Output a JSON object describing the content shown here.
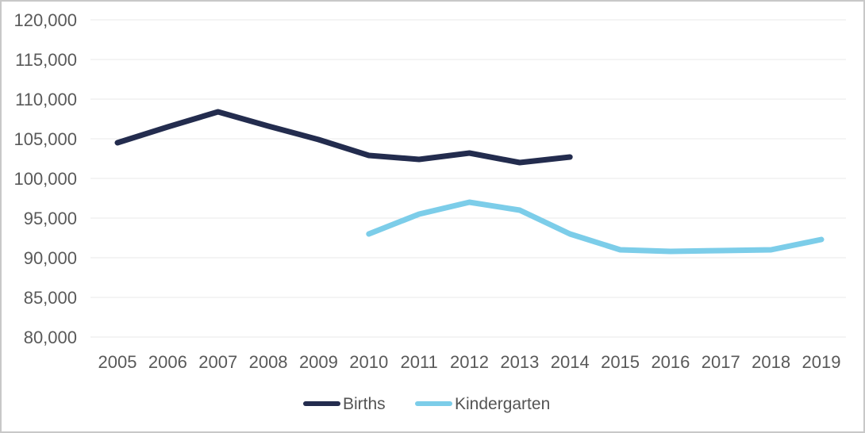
{
  "chart_data": {
    "type": "line",
    "title": "",
    "xlabel": "",
    "ylabel": "",
    "grid": true,
    "legend_position": "bottom",
    "x": [
      2005,
      2006,
      2007,
      2008,
      2009,
      2010,
      2011,
      2012,
      2013,
      2014,
      2015,
      2016,
      2017,
      2018,
      2019
    ],
    "xtick_labels": [
      "2005",
      "2006",
      "2007",
      "2008",
      "2009",
      "2010",
      "2011",
      "2012",
      "2013",
      "2014",
      "2015",
      "2016",
      "2017",
      "2018",
      "2019"
    ],
    "ylim": [
      80000,
      120000
    ],
    "yticks": [
      80000,
      85000,
      90000,
      95000,
      100000,
      105000,
      110000,
      115000,
      120000
    ],
    "ytick_labels": [
      "80,000",
      "85,000",
      "90,000",
      "95,000",
      "100,000",
      "105,000",
      "110,000",
      "115,000",
      "120,000"
    ],
    "series": [
      {
        "name": "Births",
        "color": "#232C4E",
        "x": [
          2005,
          2006,
          2007,
          2008,
          2009,
          2010,
          2011,
          2012,
          2013,
          2014
        ],
        "values": [
          104500,
          106500,
          108400,
          106600,
          104900,
          102900,
          102400,
          103200,
          102000,
          102700
        ]
      },
      {
        "name": "Kindergarten",
        "color": "#7CCDE9",
        "x": [
          2010,
          2011,
          2012,
          2013,
          2014,
          2015,
          2016,
          2017,
          2018,
          2019
        ],
        "values": [
          93000,
          95500,
          97000,
          96000,
          93000,
          91000,
          90800,
          90900,
          91000,
          92300
        ]
      }
    ],
    "colors": {
      "axis_label": "#595959",
      "gridline": "#e9e9e9",
      "background": "#ffffff",
      "frame_border": "#c8c8c8"
    }
  },
  "legend": {
    "items": [
      {
        "label": "Births",
        "color": "#232C4E"
      },
      {
        "label": "Kindergarten",
        "color": "#7CCDE9"
      }
    ]
  }
}
